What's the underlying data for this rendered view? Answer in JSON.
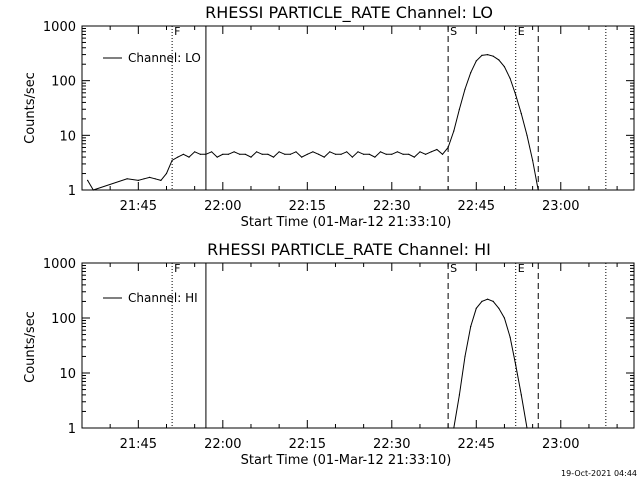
{
  "figure": {
    "stamp": "19-Oct-2021 04:44",
    "markers": {
      "F": "F",
      "S": "S",
      "E": "E"
    }
  },
  "chart_data": [
    {
      "type": "line",
      "title": "RHESSI PARTICLE_RATE Channel: LO",
      "xlabel": "Start Time (01-Mar-12 21:33:10)",
      "ylabel": "Counts/sec",
      "legend": {
        "label": "Channel: LO",
        "position": "top-left"
      },
      "yscale": "log",
      "ylim": [
        1,
        1000
      ],
      "xlim": [
        "21:35",
        "23:13"
      ],
      "xticks": [
        "21:45",
        "22:00",
        "22:15",
        "22:30",
        "22:45",
        "23:00"
      ],
      "yticks": [
        "1",
        "10",
        "100",
        "1000"
      ],
      "vlines": [
        {
          "time": "21:51",
          "style": "dotted",
          "label": "F"
        },
        {
          "time": "21:57",
          "style": "solid",
          "label": ""
        },
        {
          "time": "22:40",
          "style": "dashed",
          "label": "S"
        },
        {
          "time": "22:52",
          "style": "dotted",
          "label": "E"
        },
        {
          "time": "22:56",
          "style": "dashed",
          "label": ""
        },
        {
          "time": "23:08",
          "style": "dotted",
          "label": ""
        }
      ],
      "series": [
        {
          "name": "Channel: LO",
          "x": [
            "21:36",
            "21:37",
            "21:43",
            "21:45",
            "21:46",
            "21:47",
            "21:48",
            "21:49",
            "21:50",
            "21:51",
            "21:52",
            "21:53",
            "21:54",
            "21:55",
            "21:56",
            "21:57",
            "21:58",
            "21:59",
            "22:00",
            "22:01",
            "22:02",
            "22:03",
            "22:04",
            "22:05",
            "22:06",
            "22:07",
            "22:08",
            "22:09",
            "22:10",
            "22:11",
            "22:12",
            "22:13",
            "22:14",
            "22:15",
            "22:16",
            "22:17",
            "22:18",
            "22:19",
            "22:20",
            "22:21",
            "22:22",
            "22:23",
            "22:24",
            "22:25",
            "22:26",
            "22:27",
            "22:28",
            "22:29",
            "22:30",
            "22:31",
            "22:32",
            "22:33",
            "22:34",
            "22:35",
            "22:36",
            "22:37",
            "22:38",
            "22:39",
            "22:40",
            "22:41",
            "22:42",
            "22:43",
            "22:44",
            "22:45",
            "22:46",
            "22:47",
            "22:48",
            "22:49",
            "22:50",
            "22:51",
            "22:52",
            "22:53",
            "22:54",
            "22:55",
            "22:56"
          ],
          "values": [
            1.5,
            1.0,
            1.6,
            1.5,
            1.6,
            1.7,
            1.6,
            1.5,
            2.0,
            3.5,
            4.0,
            4.5,
            4.0,
            5.0,
            4.5,
            4.5,
            5.0,
            4.0,
            4.5,
            4.5,
            5.0,
            4.5,
            4.5,
            4.0,
            5.0,
            4.5,
            4.5,
            4.0,
            5.0,
            4.5,
            4.5,
            5.0,
            4.0,
            4.5,
            5.0,
            4.5,
            4.0,
            5.0,
            4.5,
            4.5,
            5.0,
            4.0,
            5.0,
            4.5,
            4.5,
            4.0,
            5.0,
            4.5,
            4.5,
            5.0,
            4.5,
            4.5,
            4.0,
            5.0,
            4.5,
            5.0,
            5.5,
            4.5,
            6.0,
            12,
            30,
            70,
            140,
            230,
            290,
            300,
            280,
            240,
            180,
            110,
            55,
            25,
            10,
            3.5,
            1.0
          ]
        }
      ]
    },
    {
      "type": "line",
      "title": "RHESSI PARTICLE_RATE Channel: HI",
      "xlabel": "Start Time (01-Mar-12 21:33:10)",
      "ylabel": "Counts/sec",
      "legend": {
        "label": "Channel: HI",
        "position": "top-left"
      },
      "yscale": "log",
      "ylim": [
        1,
        1000
      ],
      "xlim": [
        "21:35",
        "23:13"
      ],
      "xticks": [
        "21:45",
        "22:00",
        "22:15",
        "22:30",
        "22:45",
        "23:00"
      ],
      "yticks": [
        "1",
        "10",
        "100",
        "1000"
      ],
      "vlines": [
        {
          "time": "21:51",
          "style": "dotted",
          "label": "F"
        },
        {
          "time": "21:57",
          "style": "solid",
          "label": ""
        },
        {
          "time": "22:40",
          "style": "dashed",
          "label": "S"
        },
        {
          "time": "22:52",
          "style": "dotted",
          "label": "E"
        },
        {
          "time": "22:56",
          "style": "dashed",
          "label": ""
        },
        {
          "time": "23:08",
          "style": "dotted",
          "label": ""
        }
      ],
      "series": [
        {
          "name": "Channel: HI",
          "x": [
            "22:41",
            "22:42",
            "22:43",
            "22:44",
            "22:45",
            "22:46",
            "22:47",
            "22:48",
            "22:49",
            "22:50",
            "22:51",
            "22:52",
            "22:53",
            "22:54"
          ],
          "values": [
            1.0,
            4,
            20,
            70,
            150,
            200,
            220,
            200,
            150,
            100,
            45,
            14,
            4,
            1.0
          ]
        }
      ]
    }
  ]
}
